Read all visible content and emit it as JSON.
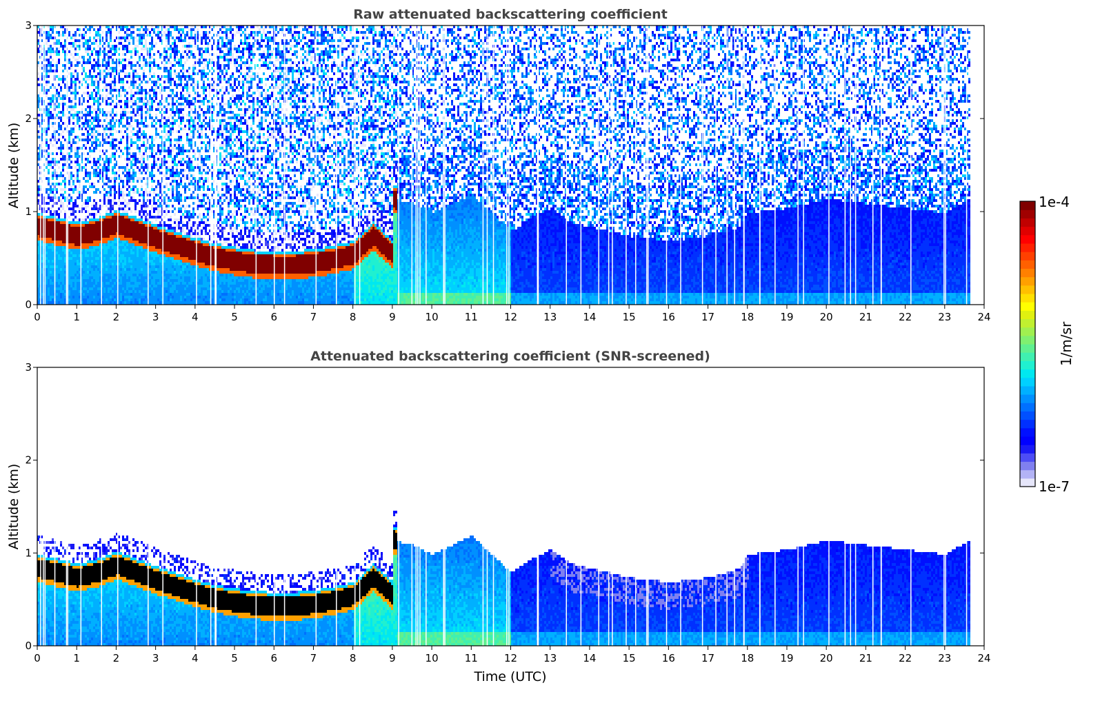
{
  "chart_data": [
    {
      "type": "heatmap",
      "title": "Raw attenuated backscattering coefficient",
      "xlabel": "",
      "ylabel": "Altitude (km)",
      "xlim": [
        0,
        24
      ],
      "ylim": [
        0,
        3
      ],
      "x_ticks": [
        "0",
        "1",
        "2",
        "3",
        "4",
        "5",
        "6",
        "7",
        "8",
        "9",
        "10",
        "11",
        "12",
        "13",
        "14",
        "15",
        "16",
        "17",
        "18",
        "19",
        "20",
        "21",
        "22",
        "23",
        "24"
      ],
      "y_ticks": [
        "0",
        "1",
        "2",
        "3"
      ],
      "data_end_time": 23.6,
      "boundary_layer_top_km": {
        "times": [
          0,
          0.5,
          1,
          1.5,
          2,
          2.5,
          3,
          3.5,
          4,
          4.5,
          5,
          5.5,
          6,
          6.5,
          7,
          7.5,
          8,
          8.5,
          9
        ],
        "values": [
          0.85,
          0.8,
          0.75,
          0.8,
          0.88,
          0.8,
          0.72,
          0.65,
          0.58,
          0.52,
          0.48,
          0.45,
          0.44,
          0.44,
          0.46,
          0.5,
          0.55,
          0.75,
          0.55
        ]
      },
      "noise_level": "high"
    },
    {
      "type": "heatmap",
      "title": "Attenuated backscattering coefficient (SNR-screened)",
      "xlabel": "Time (UTC)",
      "ylabel": "Altitude (km)",
      "xlim": [
        0,
        24
      ],
      "ylim": [
        0,
        3
      ],
      "x_ticks": [
        "0",
        "1",
        "2",
        "3",
        "4",
        "5",
        "6",
        "7",
        "8",
        "9",
        "10",
        "11",
        "12",
        "13",
        "14",
        "15",
        "16",
        "17",
        "18",
        "19",
        "20",
        "21",
        "22",
        "23",
        "24"
      ],
      "y_ticks": [
        "0",
        "1",
        "2",
        "3"
      ],
      "data_end_time": 23.6,
      "signal_top_km": {
        "times": [
          0,
          1,
          2,
          3,
          4,
          5,
          6,
          7,
          8,
          8.7,
          9,
          9.5,
          10,
          11,
          12,
          12.5,
          13,
          13.5,
          14,
          15,
          16,
          17,
          17.8,
          18,
          19,
          20,
          21,
          22,
          23,
          23.6
        ],
        "values": [
          1.0,
          0.95,
          0.98,
          0.85,
          0.78,
          0.7,
          0.58,
          0.58,
          0.65,
          0.9,
          1.15,
          1.1,
          1.0,
          1.2,
          0.8,
          0.95,
          1.05,
          0.9,
          0.85,
          0.75,
          0.7,
          0.75,
          0.85,
          1.0,
          1.05,
          1.15,
          1.1,
          1.05,
          1.0,
          1.15
        ]
      },
      "noise_level": "low"
    }
  ],
  "colorbar": {
    "label": "1/m/sr",
    "max_label": "1e-4",
    "min_label": "1e-7",
    "scale": "log",
    "range": [
      1e-07,
      0.0001
    ],
    "colors": [
      "#e6e6fa",
      "#b3b3f5",
      "#8080f0",
      "#4d4df5",
      "#1a1af5",
      "#0000ff",
      "#0010ff",
      "#0030ff",
      "#0050ff",
      "#0070ff",
      "#0090ff",
      "#00b0ff",
      "#00d0ff",
      "#00e8f0",
      "#20f0d0",
      "#40f0b0",
      "#60f090",
      "#80f070",
      "#a0f050",
      "#c0f030",
      "#e0f010",
      "#ffff00",
      "#ffe000",
      "#ffc000",
      "#ffa000",
      "#ff8000",
      "#ff6000",
      "#ff4000",
      "#ff2000",
      "#ff0000",
      "#e00000",
      "#c00000",
      "#a00000",
      "#800000"
    ]
  }
}
